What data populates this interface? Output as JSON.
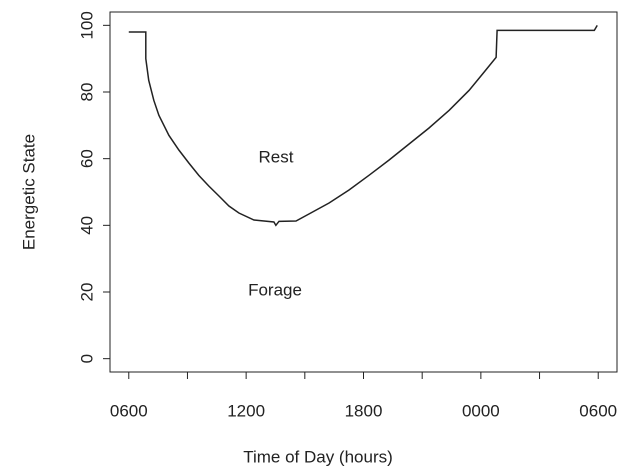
{
  "chart_data": {
    "type": "line",
    "xlabel": "Time of Day (hours)",
    "ylabel": "Energetic State",
    "annotations": [
      "Rest",
      "Forage"
    ],
    "x": [
      0,
      0.87,
      0.87,
      1.02,
      1.28,
      1.54,
      2.05,
      2.56,
      3.07,
      3.58,
      4.09,
      4.61,
      5.12,
      5.63,
      6.4,
      7.42,
      7.52,
      7.68,
      8.55,
      9.21,
      10.24,
      11.26,
      12.28,
      13.31,
      14.33,
      15.35,
      16.38,
      17.4,
      18.17,
      18.78,
      18.83,
      23.8,
      23.95
    ],
    "series": [
      {
        "color": "#222222",
        "values": [
          98,
          98,
          90,
          83.5,
          77.5,
          73,
          67,
          62.6,
          58.7,
          55,
          51.8,
          48.8,
          45.8,
          43.7,
          41.6,
          41,
          40,
          41.2,
          41.3,
          43.4,
          46.7,
          50.6,
          55,
          59.6,
          64.4,
          69.2,
          74.5,
          80.5,
          86,
          90.4,
          98.5,
          98.5,
          100
        ]
      }
    ],
    "xlim": [
      -0.96,
      24.96
    ],
    "xticks": [
      {
        "value": 0,
        "label": "0600"
      },
      {
        "value": 6,
        "label": "1200"
      },
      {
        "value": 12,
        "label": "1800"
      },
      {
        "value": 18,
        "label": "0000"
      },
      {
        "value": 24,
        "label": "0600"
      }
    ],
    "xminor_ticks": [
      3,
      9,
      15,
      21
    ],
    "ylim": [
      -4,
      104
    ],
    "yticks": [
      0,
      20,
      40,
      60,
      80,
      100
    ]
  }
}
